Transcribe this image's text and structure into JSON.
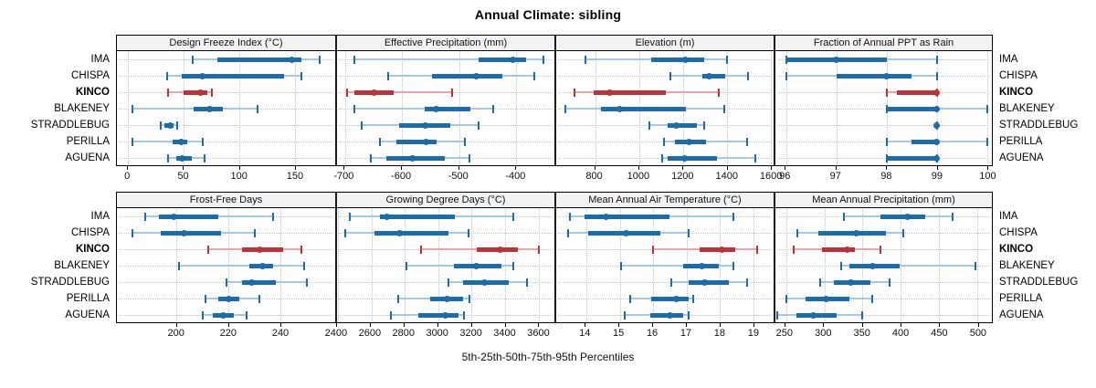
{
  "header": {
    "title": "Annual Climate: sibling"
  },
  "caption": {
    "text": "5th-25th-50th-75th-95th Percentiles"
  },
  "colors": {
    "series": "#1b6ca8",
    "series_light": "#a6c9e0",
    "highlight": "#b93438",
    "highlight_light": "#e4a9a9",
    "grid": "#c4c4c4",
    "strip_bg": "#f2f2f2",
    "border": "#000000"
  },
  "chart_data": {
    "type": "dotplot",
    "subtype": "percentile-intervals",
    "percentiles": [
      "5th",
      "25th",
      "50th",
      "75th",
      "95th"
    ],
    "sites": [
      "IMA",
      "CHISPA",
      "KINCO",
      "BLAKENEY",
      "STRADDLEBUG",
      "PERILLA",
      "AGUENA"
    ],
    "highlight_site": "KINCO",
    "legend_position": "none",
    "grid": "dotted",
    "panel_rows": [
      [
        {
          "title": "Design Freeze Index (°C)",
          "ticks": [
            0,
            50,
            100,
            150
          ],
          "domain": [
            -10,
            186
          ],
          "values": [
            [
              58,
              80,
              147,
              156,
              172
            ],
            [
              35,
              48,
              67,
              140,
              156
            ],
            [
              36,
              50,
              65,
              71,
              75
            ],
            [
              4,
              59,
              73,
              85,
              116
            ],
            [
              29,
              33,
              38,
              41,
              44
            ],
            [
              4,
              40,
              48,
              53,
              67
            ],
            [
              36,
              43,
              49,
              57,
              69
            ]
          ]
        },
        {
          "title": "Effective Precipitation (mm)",
          "ticks": [
            -700,
            -600,
            -500,
            -400
          ],
          "domain": [
            -715,
            -332
          ],
          "values": [
            [
              -685,
              -465,
              -405,
              -382,
              -352
            ],
            [
              -625,
              -548,
              -470,
              -423,
              -368
            ],
            [
              -697,
              -684,
              -650,
              -616,
              -513
            ],
            [
              -684,
              -560,
              -540,
              -480,
              -440
            ],
            [
              -672,
              -605,
              -560,
              -516,
              -465
            ],
            [
              -640,
              -610,
              -558,
              -540,
              -489
            ],
            [
              -656,
              -628,
              -583,
              -525,
              -481
            ]
          ]
        },
        {
          "title": "Elevation (m)",
          "ticks": [
            800,
            1000,
            1200,
            1400,
            1600
          ],
          "domain": [
            620,
            1612
          ],
          "values": [
            [
              755,
              1055,
              1210,
              1295,
              1400
            ],
            [
              1140,
              1285,
              1320,
              1390,
              1495
            ],
            [
              705,
              790,
              865,
              1120,
              1360
            ],
            [
              660,
              825,
              910,
              1210,
              1385
            ],
            [
              1045,
              1130,
              1170,
              1260,
              1295
            ],
            [
              1110,
              1160,
              1225,
              1305,
              1490
            ],
            [
              1105,
              1130,
              1205,
              1355,
              1530
            ]
          ]
        },
        {
          "title": "Fraction of Annual PPT as Rain",
          "ticks": [
            96,
            97,
            98,
            99,
            100
          ],
          "domain": [
            95.78,
            100.1
          ],
          "values": [
            [
              96,
              96,
              97,
              98,
              99
            ],
            [
              96,
              97,
              98,
              98.5,
              99
            ],
            [
              98,
              98.2,
              99,
              99,
              99
            ],
            [
              98,
              98,
              99,
              99,
              100
            ],
            [
              99,
              99,
              99,
              99,
              99
            ],
            [
              98,
              98.5,
              99,
              99,
              100
            ],
            [
              98,
              98,
              99,
              99,
              99
            ]
          ]
        }
      ],
      [
        {
          "title": "Frost-Free Days",
          "ticks": [
            200,
            220,
            240
          ],
          "domain": [
            177,
            261
          ],
          "values": [
            [
              188,
              193,
              199,
              216,
              237
            ],
            [
              183,
              194,
              203,
              217,
              230
            ],
            [
              212,
              225,
              232,
              241,
              248
            ],
            [
              201,
              228,
              233,
              237,
              249
            ],
            [
              219,
              225,
              229,
              238,
              250
            ],
            [
              211,
              216,
              220,
              224,
              232
            ],
            [
              210,
              214,
              218,
              222,
              227
            ]
          ]
        },
        {
          "title": "Growing Degree Days (°C)",
          "ticks": [
            2400,
            2600,
            2800,
            3000,
            3200,
            3400,
            3600
          ],
          "domain": [
            2395,
            3695
          ],
          "values": [
            [
              2470,
              2650,
              2690,
              3100,
              3450
            ],
            [
              2445,
              2620,
              2770,
              3060,
              3180
            ],
            [
              2900,
              3230,
              3370,
              3475,
              3600
            ],
            [
              2810,
              3095,
              3230,
              3380,
              3450
            ],
            [
              3060,
              3150,
              3275,
              3420,
              3530
            ],
            [
              2760,
              2950,
              3055,
              3150,
              3185
            ],
            [
              2715,
              2880,
              3040,
              3120,
              3155
            ]
          ]
        },
        {
          "title": "Mean Annual Air Temperature (°C)",
          "ticks": [
            14,
            15,
            16,
            17,
            18,
            19
          ],
          "domain": [
            13.1,
            19.6
          ],
          "values": [
            [
              13.5,
              13.95,
              14.6,
              16.5,
              18.4
            ],
            [
              13.45,
              14.05,
              15.2,
              16.2,
              17.05
            ],
            [
              16.0,
              17.4,
              18.05,
              18.45,
              19.1
            ],
            [
              15.05,
              16.9,
              17.45,
              17.95,
              18.4
            ],
            [
              16.55,
              17.05,
              17.55,
              18.25,
              18.8
            ],
            [
              15.3,
              15.95,
              16.7,
              17.05,
              17.2
            ],
            [
              15.15,
              15.9,
              16.5,
              16.9,
              17.05
            ]
          ]
        },
        {
          "title": "Mean Annual Precipitation (mm)",
          "ticks": [
            250,
            300,
            350,
            400,
            450,
            500
          ],
          "domain": [
            236,
            519
          ],
          "values": [
            [
              325,
              373,
              409,
              432,
              468
            ],
            [
              265,
              292,
              342,
              381,
              403
            ],
            [
              260,
              297,
              330,
              340,
              373
            ],
            [
              322,
              333,
              363,
              398,
              497
            ],
            [
              295,
              312,
              335,
              360,
              385
            ],
            [
              250,
              275,
              302,
              333,
              363
            ],
            [
              238,
              263,
              286,
              316,
              349
            ]
          ]
        }
      ]
    ]
  }
}
